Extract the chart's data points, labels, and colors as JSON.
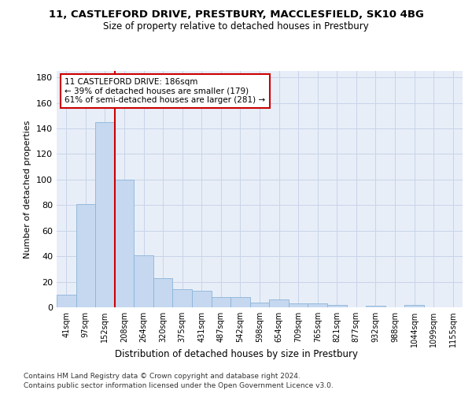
{
  "title_line1": "11, CASTLEFORD DRIVE, PRESTBURY, MACCLESFIELD, SK10 4BG",
  "title_line2": "Size of property relative to detached houses in Prestbury",
  "xlabel": "Distribution of detached houses by size in Prestbury",
  "ylabel": "Number of detached properties",
  "categories": [
    "41sqm",
    "97sqm",
    "152sqm",
    "208sqm",
    "264sqm",
    "320sqm",
    "375sqm",
    "431sqm",
    "487sqm",
    "542sqm",
    "598sqm",
    "654sqm",
    "709sqm",
    "765sqm",
    "821sqm",
    "877sqm",
    "932sqm",
    "988sqm",
    "1044sqm",
    "1099sqm",
    "1155sqm"
  ],
  "values": [
    10,
    81,
    145,
    100,
    41,
    23,
    14,
    13,
    8,
    8,
    4,
    6,
    3,
    3,
    2,
    0,
    1,
    0,
    2,
    0,
    0
  ],
  "bar_color": "#c5d8f0",
  "bar_edge_color": "#8ab4d8",
  "grid_color": "#c8d4e8",
  "vline_color": "#cc0000",
  "annotation_text": "11 CASTLEFORD DRIVE: 186sqm\n← 39% of detached houses are smaller (179)\n61% of semi-detached houses are larger (281) →",
  "annotation_box_color": "#ffffff",
  "annotation_box_edge": "#cc0000",
  "ylim": [
    0,
    185
  ],
  "yticks": [
    0,
    20,
    40,
    60,
    80,
    100,
    120,
    140,
    160,
    180
  ],
  "footer1": "Contains HM Land Registry data © Crown copyright and database right 2024.",
  "footer2": "Contains public sector information licensed under the Open Government Licence v3.0.",
  "bg_color": "#e8eef8"
}
